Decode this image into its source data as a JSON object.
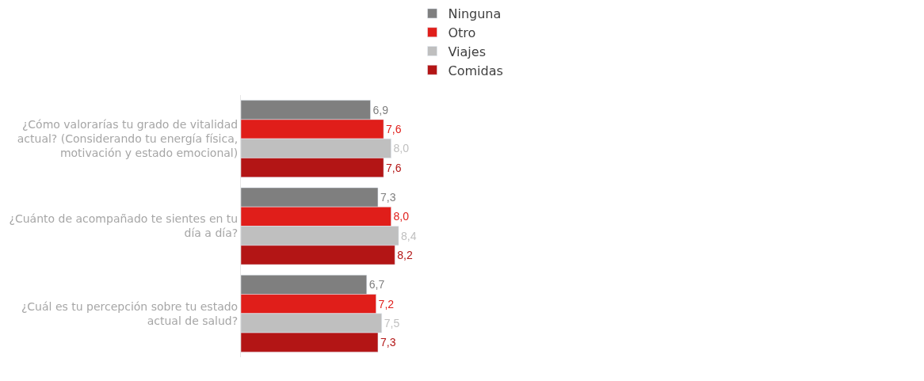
{
  "chart_data": {
    "type": "bar",
    "orientation": "horizontal",
    "categories": [
      "¿Cómo valorarías tu grado de vitalidad\nactual? (Considerando tu energía física,\nmotivación y estado emocional)",
      "¿Cuánto de acompañado te sientes en tu\ndía a día?",
      "¿Cuál es tu percepción sobre tu estado\nactual de salud?"
    ],
    "series": [
      {
        "name": "Ninguna",
        "color": "#7f7f7f",
        "values": [
          6.9,
          7.3,
          6.7
        ],
        "value_labels": [
          "6,9",
          "7,3",
          "6,7"
        ]
      },
      {
        "name": "Otro",
        "color": "#e01e1a",
        "values": [
          7.6,
          8.0,
          7.2
        ],
        "value_labels": [
          "7,6",
          "8,0",
          "7,2"
        ]
      },
      {
        "name": "Viajes",
        "color": "#bfbfbf",
        "values": [
          8.0,
          8.4,
          7.5
        ],
        "value_labels": [
          "8,0",
          "8,4",
          "7,5"
        ]
      },
      {
        "name": "Comidas",
        "color": "#b31515",
        "values": [
          7.6,
          8.2,
          7.3
        ],
        "value_labels": [
          "7,6",
          "8,2",
          "7,3"
        ]
      }
    ],
    "tick_labels": "y",
    "legend": "top"
  }
}
